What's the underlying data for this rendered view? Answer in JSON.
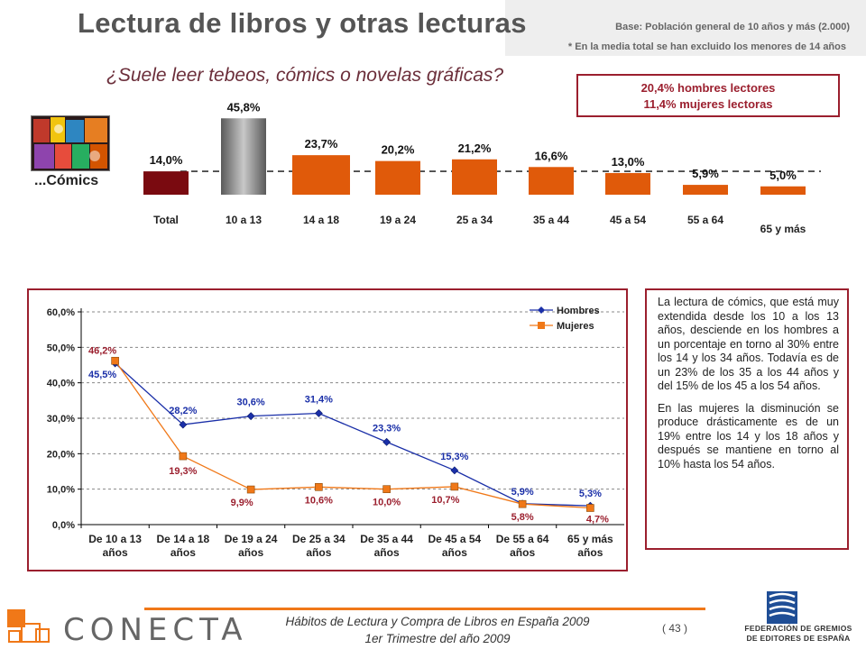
{
  "header": {
    "title": "Lectura de libros y otras lecturas",
    "base_note": "Base: Población general de 10 años y más (2.000)",
    "exclusion_note": "* En la media total se han excluido los menores de 14 años"
  },
  "question": "¿Suele leer tebeos, cómics o novelas gráficas?",
  "gender_box": {
    "line1": "20,4% hombres lectores",
    "line2": "11,4% mujeres lectoras"
  },
  "comics_label": "...Cómics",
  "summary_text": {
    "p1": "La lectura de cómics, que está muy extendida desde los 10 a los 13 años, desciende en los hombres a un porcentaje en torno al 30% entre los 14 y los 34 años. Todavía es de un 23% de los 35 a los 44 años y del 15% de los 45 a los 54 años.",
    "p2": "En las mujeres la disminución se produce drásticamente es de un 19% entre los 14 y los 18 años y después se mantiene en torno al 10% hasta los 54 años."
  },
  "footer": {
    "title": "Hábitos de Lectura y Compra de Libros en España 2009",
    "subtitle": "1er Trimestre del año 2009",
    "page": "( 43 )",
    "conecta": "CONECTA",
    "fge_line1": "FEDERACIÓN DE GREMIOS",
    "fge_line2": "DE EDITORES DE ESPAÑA"
  },
  "colors": {
    "total_bar": "#7a0a10",
    "age_10_13_bar": "#8a8a8a",
    "age_bars": "#e05a0a",
    "hombres": "#1a2fa8",
    "mujeres": "#f07818",
    "frame": "#9b1f2e"
  },
  "chart_data": [
    {
      "type": "bar",
      "categories": [
        "Total",
        "10 a 13",
        "14 a 18",
        "19 a 24",
        "25 a 34",
        "35 a 44",
        "45 a 54",
        "55 a 64",
        "65 y más"
      ],
      "values": [
        14.0,
        45.8,
        23.7,
        20.2,
        21.2,
        16.6,
        13.0,
        5.9,
        5.0
      ],
      "value_labels": [
        "14,0%",
        "45,8%",
        "23,7%",
        "20,2%",
        "21,2%",
        "16,6%",
        "13,0%",
        "5,9%",
        "5,0%"
      ],
      "reference_line": 14.0,
      "grid": false
    },
    {
      "type": "line",
      "categories": [
        "De 10 a 13 años",
        "De 14 a 18 años",
        "De 19 a 24 años",
        "De 25 a 34 años",
        "De 35 a 44 años",
        "De 45 a 54 años",
        "De 55 a 64 años",
        "65 y más años"
      ],
      "series": [
        {
          "name": "Hombres",
          "values": [
            45.5,
            28.2,
            30.6,
            31.4,
            23.3,
            15.3,
            5.9,
            5.3
          ],
          "labels": [
            "45,5%",
            "28,2%",
            "30,6%",
            "31,4%",
            "23,3%",
            "15,3%",
            "5,9%",
            "5,3%"
          ]
        },
        {
          "name": "Mujeres",
          "values": [
            46.2,
            19.3,
            9.9,
            10.6,
            10.0,
            10.7,
            5.8,
            4.7
          ],
          "labels": [
            "46,2%",
            "19,3%",
            "9,9%",
            "10,6%",
            "10,0%",
            "10,7%",
            "5,8%",
            "4,7%"
          ]
        }
      ],
      "yticks": [
        "0,0%",
        "10,0%",
        "20,0%",
        "30,0%",
        "40,0%",
        "50,0%",
        "60,0%"
      ],
      "ylim": [
        0,
        60
      ],
      "grid": true,
      "legend": "top-right"
    }
  ]
}
